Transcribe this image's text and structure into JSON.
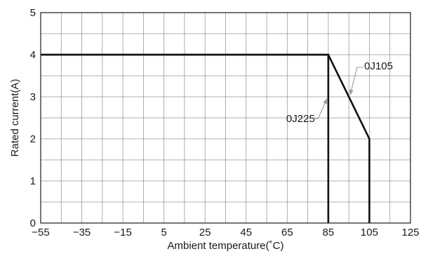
{
  "chart_data": {
    "type": "line",
    "xlabel": "Ambient temperature(˚C)",
    "ylabel": "Rated current(A)",
    "xlim": [
      -55,
      125
    ],
    "ylim": [
      0,
      5
    ],
    "x_ticks": [
      -55,
      -45,
      -35,
      -25,
      -15,
      -5,
      5,
      15,
      25,
      35,
      45,
      55,
      65,
      75,
      85,
      95,
      105,
      115,
      125
    ],
    "x_tick_labels": [
      "−55",
      "−35",
      "−15",
      "5",
      "25",
      "45",
      "65",
      "85",
      "105",
      "125"
    ],
    "x_tick_label_values": [
      -55,
      -35,
      -15,
      5,
      25,
      45,
      65,
      85,
      105,
      125
    ],
    "y_ticks": [
      0,
      0.5,
      1,
      1.5,
      2,
      2.5,
      3,
      3.5,
      4,
      4.5,
      5
    ],
    "y_tick_labels": [
      "0",
      "1",
      "2",
      "3",
      "4",
      "5"
    ],
    "y_tick_label_values": [
      0,
      1,
      2,
      3,
      4,
      5
    ],
    "grid": true,
    "series": [
      {
        "name": "0J225",
        "points": [
          [
            -55,
            4
          ],
          [
            85,
            4
          ],
          [
            85,
            0
          ]
        ]
      },
      {
        "name": "0J105",
        "points": [
          [
            -55,
            4
          ],
          [
            85,
            4
          ],
          [
            105,
            2
          ],
          [
            105,
            0
          ]
        ]
      }
    ],
    "annotations": [
      {
        "text": "0J105",
        "arrow_to": [
          95,
          3
        ]
      },
      {
        "text": "0J225",
        "arrow_to": [
          85,
          3
        ]
      }
    ],
    "line_color": "#111111",
    "grid_color": "#999999"
  }
}
